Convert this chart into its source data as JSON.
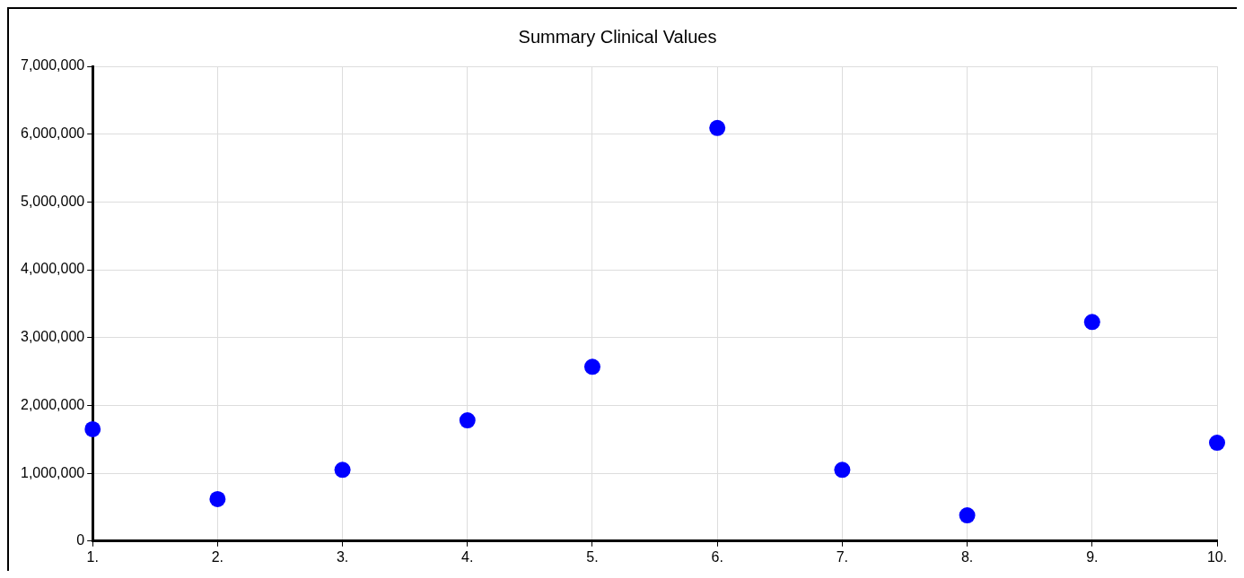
{
  "chart_data": {
    "type": "scatter",
    "title": "Summary Clinical Values",
    "categories": [
      "1.",
      "2.",
      "3.",
      "4.",
      "5.",
      "6.",
      "7.",
      "8.",
      "9.",
      "10."
    ],
    "values": [
      1650000,
      620000,
      1050000,
      1780000,
      2570000,
      6090000,
      1050000,
      380000,
      3230000,
      1450000
    ],
    "color": "#0000ff",
    "marker": "circle",
    "ylim": [
      0,
      7000000
    ],
    "yticks": [
      0,
      {
        "value": 1000000,
        "label": "1,000,000"
      },
      {
        "value": 2000000,
        "label": "2,000,000"
      },
      {
        "value": 3000000,
        "label": "3,000,000"
      },
      {
        "value": 4000000,
        "label": "4,000,000"
      },
      {
        "value": 5000000,
        "label": "5,000,000"
      },
      {
        "value": 6000000,
        "label": "6,000,000"
      },
      {
        "value": 7000000,
        "label": "7,000,000"
      }
    ],
    "grid": true,
    "legend": false
  }
}
